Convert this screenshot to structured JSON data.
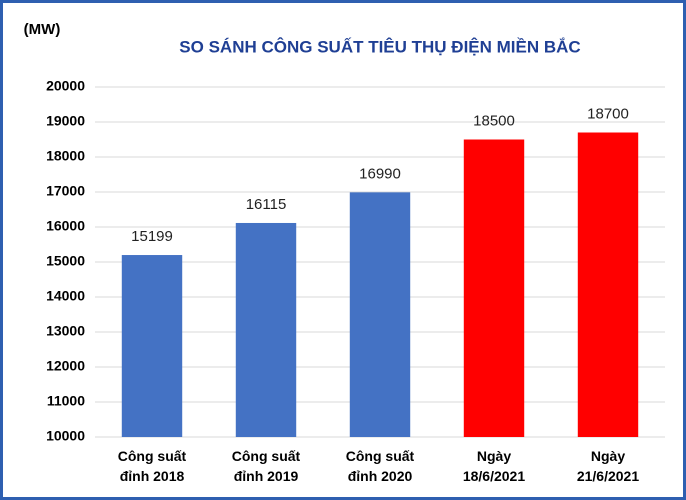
{
  "chart_data": {
    "type": "bar",
    "title": "SO SÁNH CÔNG SUẤT TIÊU THỤ ĐIỆN MIỀN BẮC",
    "y_label": "(MW)",
    "categories": [
      "Công suất\nđỉnh 2018",
      "Công suất\nđỉnh 2019",
      "Công suất\nđỉnh 2020",
      "Ngày\n18/6/2021",
      "Ngày\n21/6/2021"
    ],
    "values": [
      15199,
      16115,
      16990,
      18500,
      18700
    ],
    "colors": [
      "#4472c4",
      "#4472c4",
      "#4472c4",
      "#ff0000",
      "#ff0000"
    ],
    "ylim": [
      10000,
      20000
    ],
    "yticks": [
      10000,
      11000,
      12000,
      13000,
      14000,
      15000,
      16000,
      17000,
      18000,
      19000,
      20000
    ],
    "grid": true
  }
}
